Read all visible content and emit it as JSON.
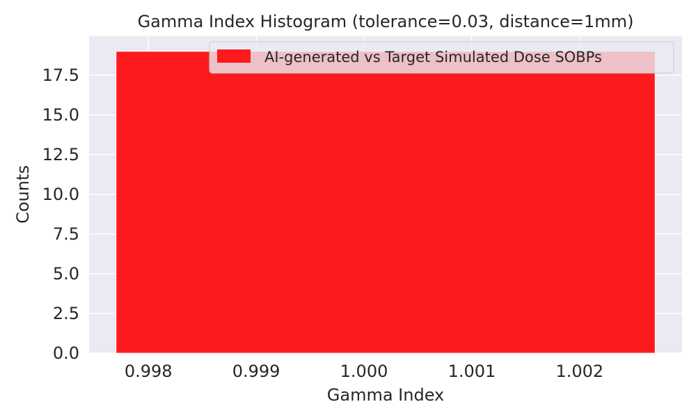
{
  "chart_data": {
    "type": "bar",
    "title": "Gamma Index Histogram (tolerance=0.03, distance=1mm)",
    "xlabel": "Gamma Index",
    "ylabel": "Counts",
    "xlim": [
      0.99745,
      1.00295
    ],
    "ylim": [
      0,
      19.95
    ],
    "xticks": [
      0.998,
      0.999,
      1.0,
      1.001,
      1.002
    ],
    "xtick_labels": [
      "0.998",
      "0.999",
      "1.000",
      "1.001",
      "1.002"
    ],
    "yticks": [
      0,
      2.5,
      5,
      7.5,
      10,
      12.5,
      15,
      17.5
    ],
    "ytick_labels": [
      "0.0",
      "2.5",
      "5.0",
      "7.5",
      "10.0",
      "12.5",
      "15.0",
      "17.5"
    ],
    "bins": [
      {
        "x0": 0.9977,
        "x1": 1.0027,
        "count": 19
      }
    ],
    "series": [
      {
        "name": "AI-generated vs Target Simulated Dose SOBPs",
        "color": "#fd1a1c"
      }
    ],
    "legend_position": "top-right",
    "grid": true,
    "background_color": "#eaeaf2",
    "grid_color": "#ffffff"
  }
}
